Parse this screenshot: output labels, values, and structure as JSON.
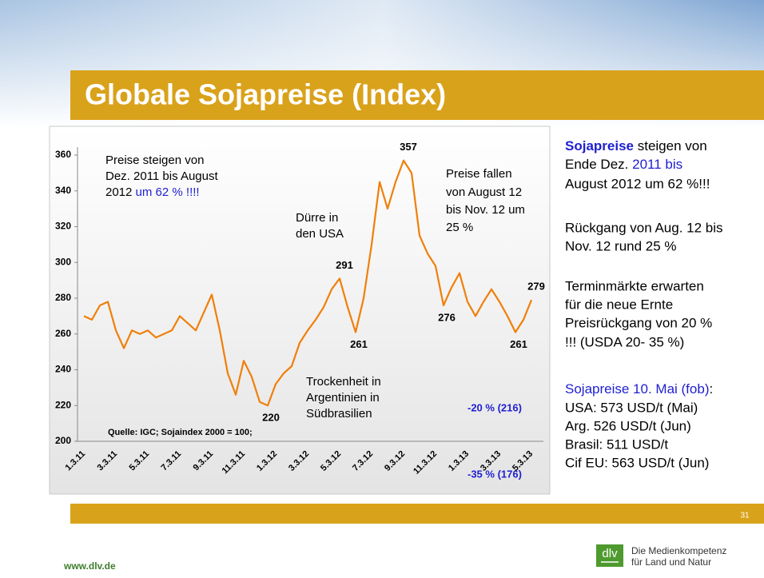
{
  "header": {
    "title": "Globale Sojapreise (Index)"
  },
  "chart_data": {
    "type": "line",
    "categories": [
      "1.3.11",
      null,
      null,
      null,
      "3.3.11",
      null,
      null,
      null,
      "5.3.11",
      null,
      null,
      null,
      "7.3.11",
      null,
      null,
      null,
      "9.3.11",
      null,
      null,
      null,
      "11.3.11",
      null,
      null,
      null,
      "1.3.12",
      null,
      null,
      null,
      "3.3.12",
      null,
      null,
      null,
      "5.3.12",
      null,
      null,
      null,
      "7.3.12",
      null,
      null,
      null,
      "9.3.12",
      null,
      null,
      null,
      "11.3.12",
      null,
      null,
      null,
      "1.3.13",
      null,
      null,
      null,
      "3.3.13",
      null,
      null,
      null,
      "5.3.13"
    ],
    "values": [
      270,
      268,
      276,
      278,
      262,
      252,
      262,
      260,
      262,
      258,
      260,
      262,
      270,
      266,
      262,
      272,
      282,
      262,
      238,
      226,
      245,
      236,
      222,
      220,
      232,
      238,
      242,
      255,
      262,
      268,
      275,
      285,
      291,
      275,
      261,
      280,
      310,
      345,
      330,
      345,
      357,
      350,
      315,
      305,
      298,
      276,
      286,
      294,
      278,
      270,
      278,
      285,
      278,
      270,
      261,
      268,
      279
    ],
    "value_labels": [
      null,
      null,
      null,
      null,
      null,
      null,
      null,
      null,
      null,
      null,
      null,
      null,
      null,
      null,
      null,
      null,
      null,
      null,
      null,
      null,
      null,
      null,
      null,
      "220",
      null,
      null,
      null,
      null,
      null,
      null,
      null,
      null,
      "291",
      null,
      "261",
      null,
      null,
      null,
      null,
      null,
      "357",
      null,
      null,
      null,
      null,
      "276",
      null,
      null,
      null,
      null,
      null,
      null,
      null,
      null,
      "261",
      null,
      "279"
    ],
    "color": "#f07f09",
    "ylim": [
      200,
      360
    ],
    "yticks": [
      200,
      220,
      240,
      260,
      280,
      300,
      320,
      340,
      360
    ],
    "source": "Quelle: IGC; Sojaindex 2000 = 100;",
    "annotations": {
      "rise": [
        "Preise steigen von",
        "Dez. 2011 bis August",
        "2012 ",
        "um 62 % !!!!"
      ],
      "drought": [
        "Dürre in",
        "den USA"
      ],
      "fall": [
        "Preise fallen",
        "von August 12",
        "bis  Nov. 12 um",
        "25 %"
      ],
      "dryness": [
        "Trockenheit in",
        "Argentinien in",
        "Südbrasilien"
      ],
      "forecast": [
        "-20 % (216)",
        "-35 % (176)"
      ]
    }
  },
  "panel": {
    "lines": [
      [
        "Sojapreise",
        " steigen von"
      ],
      [
        "Ende Dez. ",
        "2011  bis"
      ],
      [
        "August 2012 um 62 %!!!"
      ],
      [
        "Rückgang von Aug. 12 bis"
      ],
      [
        "Nov. 12  rund  25 %"
      ],
      [
        "Terminmärkte erwarten"
      ],
      [
        "für die neue Ernte"
      ],
      [
        "Preisrückgang von 20 %"
      ],
      [
        "!!! (USDA 20- 35 %)"
      ],
      [
        "Sojapreise 10. Mai (fob)",
        ":"
      ],
      [
        "USA: 573 USD/t (Mai)"
      ],
      [
        "Arg. 526 USD/t (Jun)"
      ],
      [
        "Brasil: 511 USD/t"
      ],
      [
        "Cif  EU: 563 USD/t (Jun)"
      ]
    ]
  },
  "footer": {
    "page": "31",
    "url": "www.dlv.de",
    "logo": "dlv",
    "tagline": [
      "Die Medienkompetenz",
      "für Land und Natur"
    ]
  }
}
